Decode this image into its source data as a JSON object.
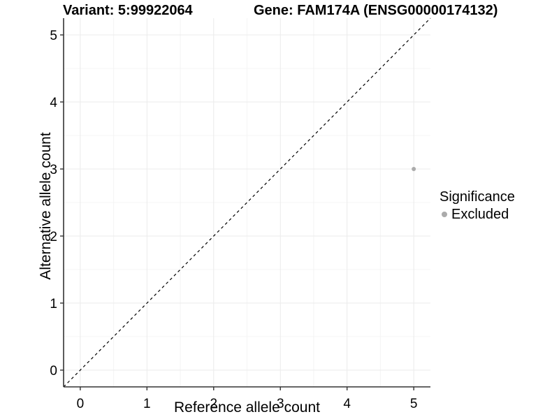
{
  "figure": {
    "title_variant": "Variant: 5:99922064",
    "title_gene": "Gene: FAM174A (ENSG00000174132)"
  },
  "axes": {
    "x_label": "Reference allele count",
    "y_label": "Alternative allele count"
  },
  "legend": {
    "title": "Significance",
    "items": [
      {
        "label": "Excluded",
        "color": "#ababab"
      }
    ]
  },
  "chart_data": {
    "type": "scatter",
    "title": "Variant: 5:99922064 | Gene: FAM174A (ENSG00000174132)",
    "xlabel": "Reference allele count",
    "ylabel": "Alternative allele count",
    "xlim": [
      -0.25,
      5.25
    ],
    "ylim": [
      -0.25,
      5.25
    ],
    "x_ticks": [
      0,
      1,
      2,
      3,
      4,
      5
    ],
    "y_ticks": [
      0,
      1,
      2,
      3,
      4,
      5
    ],
    "minor_grid_step": 0.5,
    "grid": true,
    "legend_position": "right",
    "series": [
      {
        "name": "Excluded",
        "color": "#ababab",
        "points": [
          {
            "x": 5,
            "y": 3
          }
        ]
      }
    ],
    "reference_line": {
      "type": "identity",
      "slope": 1,
      "intercept": 0,
      "style": "dashed",
      "color": "#000000"
    }
  },
  "colors": {
    "background": "#ffffff",
    "grid_major": "#ebebeb",
    "grid_minor": "#f4f4f4",
    "axis": "#333333",
    "text": "#000000",
    "point": "#ababab",
    "tick_label": "#000000"
  }
}
